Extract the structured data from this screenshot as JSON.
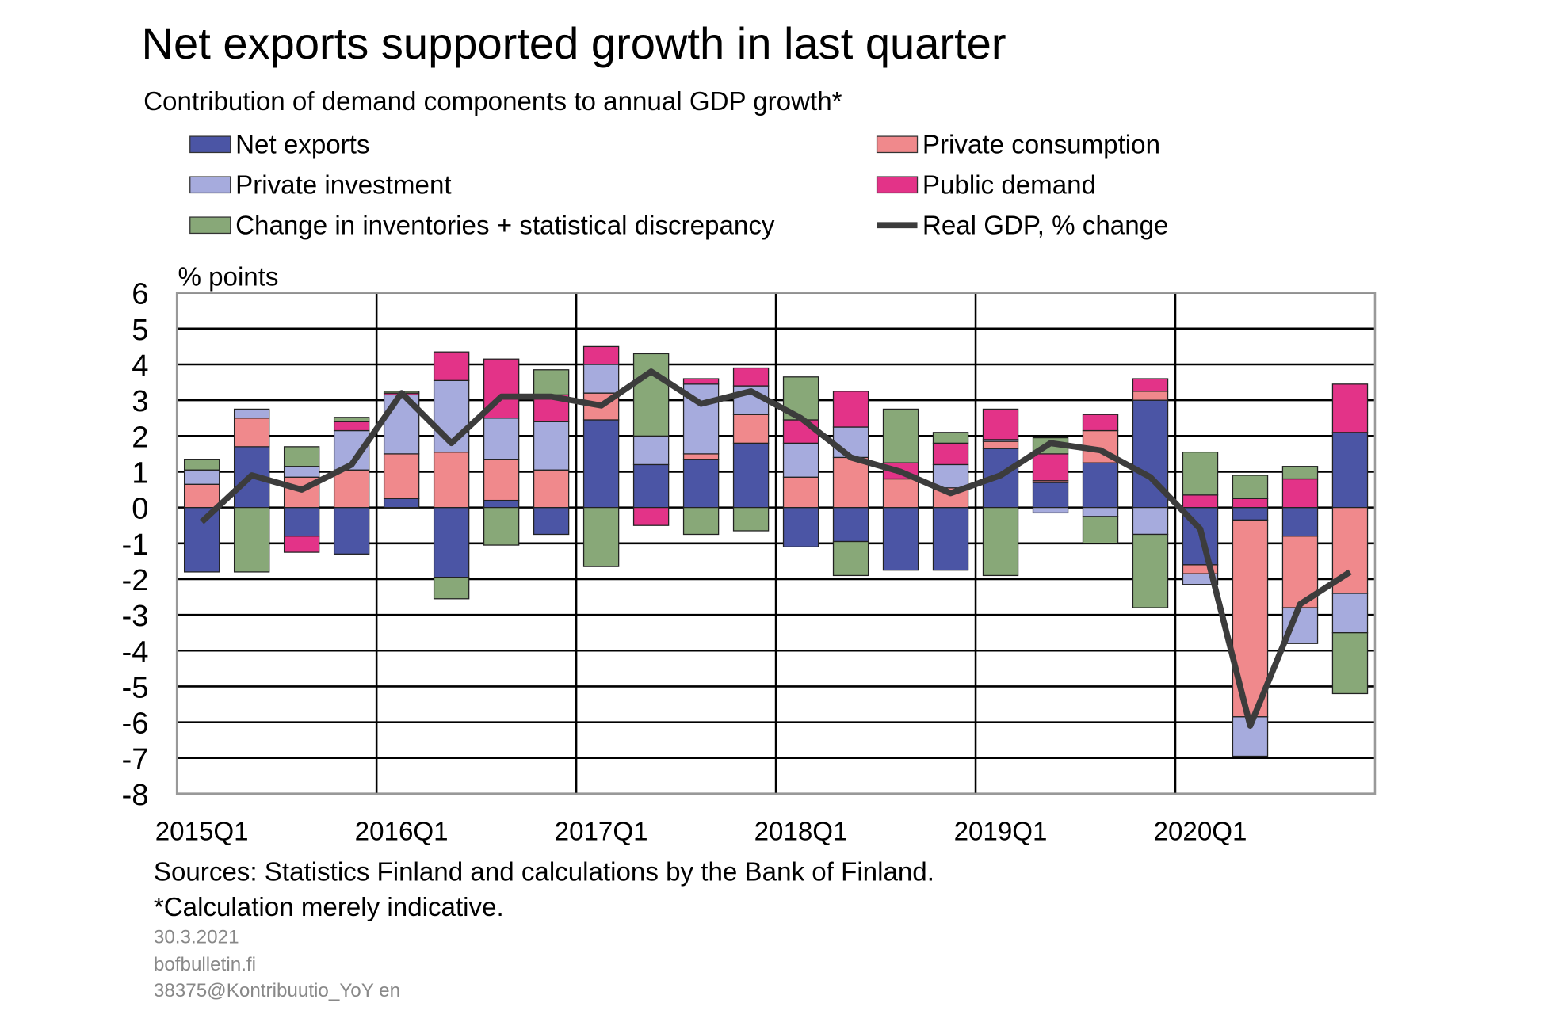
{
  "chart_data": {
    "type": "bar",
    "stacked": true,
    "title": "Net exports supported growth in last quarter",
    "subtitle": "Contribution of demand components to annual GDP growth*",
    "y_label": "% points",
    "categories": [
      "2015Q1",
      null,
      null,
      null,
      "2016Q1",
      null,
      null,
      null,
      "2017Q1",
      null,
      null,
      null,
      "2018Q1",
      null,
      null,
      null,
      "2019Q1",
      null,
      null,
      null,
      "2020Q1",
      null,
      null,
      null
    ],
    "series": [
      {
        "name": "Net exports",
        "color": "#4b55a5",
        "values": [
          -1.8,
          1.7,
          -0.8,
          -1.3,
          0.25,
          -1.95,
          0.2,
          -0.75,
          2.45,
          1.2,
          1.35,
          1.8,
          -1.1,
          -0.95,
          -1.75,
          -1.75,
          1.65,
          0.7,
          1.25,
          3.0,
          -1.6,
          -0.35,
          -0.8,
          2.1
        ]
      },
      {
        "name": "Private consumption",
        "color": "#f0898c",
        "values": [
          0.65,
          0.8,
          0.85,
          1.05,
          1.25,
          1.55,
          1.15,
          1.05,
          0.75,
          0,
          0.15,
          0.8,
          0.85,
          1.4,
          0.8,
          0.55,
          0.2,
          0.05,
          0.9,
          0.25,
          -0.25,
          -5.5,
          -2.0,
          -2.4
        ]
      },
      {
        "name": "Private investment",
        "color": "#a6abdd",
        "values": [
          0.4,
          0.25,
          0.3,
          1.1,
          1.65,
          2.0,
          1.15,
          1.35,
          0.8,
          0.8,
          1.95,
          0.8,
          0.95,
          0.85,
          0,
          0.65,
          0.05,
          -0.15,
          -0.25,
          -0.75,
          -0.3,
          -1.1,
          -1.0,
          -1.1
        ]
      },
      {
        "name": "Public demand",
        "color": "#e33388",
        "values": [
          0,
          0,
          -0.45,
          0.25,
          0.05,
          0.8,
          1.65,
          0.75,
          0.5,
          -0.5,
          0.15,
          0.5,
          0.65,
          1.0,
          0.45,
          0.6,
          0.85,
          0.75,
          0.45,
          0.35,
          0.35,
          0.25,
          0.8,
          1.35
        ]
      },
      {
        "name": "Change in inventories + statistical discrepancy",
        "color": "#88a878",
        "values": [
          0.3,
          -1.8,
          0.55,
          0.12,
          0.05,
          -0.6,
          -1.05,
          0.7,
          -1.65,
          2.3,
          -0.75,
          -0.65,
          1.2,
          -0.95,
          1.5,
          0.3,
          -1.9,
          0.45,
          -0.75,
          -2.05,
          1.2,
          0.65,
          0.35,
          -1.7
        ]
      },
      {
        "name": "Real GDP, % change",
        "color": "#3c3c3c",
        "kind": "line",
        "values": [
          -0.4,
          0.9,
          0.5,
          1.2,
          3.2,
          1.8,
          3.1,
          3.1,
          2.85,
          3.8,
          2.9,
          3.25,
          2.5,
          1.4,
          1.0,
          0.4,
          0.9,
          1.8,
          1.6,
          0.85,
          -0.6,
          -6.1,
          -2.7,
          -1.8
        ]
      }
    ],
    "ylim": [
      -8,
      6
    ],
    "yticks": [
      6,
      5,
      4,
      3,
      2,
      1,
      0,
      -1,
      -2,
      -3,
      -4,
      -5,
      -6,
      -7,
      -8
    ],
    "grid": true,
    "sources": "Sources: Statistics Finland and calculations by the Bank of Finland.",
    "note": "*Calculation merely indicative.",
    "date": "30.3.2021",
    "site": "bofbulletin.fi",
    "code": "38375@Kontribuutio_YoY en"
  }
}
